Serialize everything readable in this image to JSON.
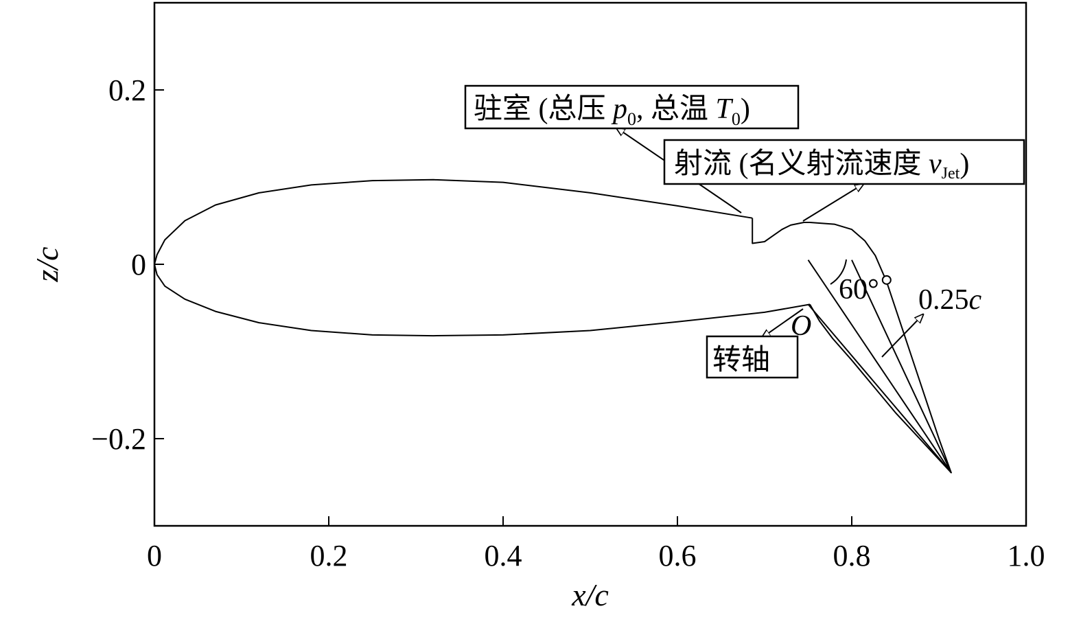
{
  "chart_data": {
    "type": "line",
    "xlabel": "x/c",
    "ylabel": "z/c",
    "xlim": [
      0,
      1.0
    ],
    "ylim": [
      -0.3,
      0.3
    ],
    "xticks": [
      {
        "value": 0,
        "label": "0"
      },
      {
        "value": 0.2,
        "label": "0.2"
      },
      {
        "value": 0.4,
        "label": "0.4"
      },
      {
        "value": 0.6,
        "label": "0.6"
      },
      {
        "value": 0.8,
        "label": "0.8"
      },
      {
        "value": 1.0,
        "label": "1.0"
      }
    ],
    "yticks": [
      {
        "value": 0.2,
        "label": "0.2"
      },
      {
        "value": 0,
        "label": "0"
      },
      {
        "value": -0.2,
        "label": "−0.2"
      }
    ],
    "grid": false,
    "legend": "none",
    "series": [
      {
        "role": "main-airfoil",
        "x": [
          0.686,
          0.6,
          0.5,
          0.4,
          0.32,
          0.25,
          0.18,
          0.12,
          0.07,
          0.035,
          0.012,
          0.003,
          0.0,
          0.003,
          0.012,
          0.035,
          0.07,
          0.12,
          0.18,
          0.25,
          0.32,
          0.4,
          0.5,
          0.6,
          0.7,
          0.752
        ],
        "y": [
          0.053,
          0.067,
          0.082,
          0.094,
          0.097,
          0.096,
          0.091,
          0.082,
          0.068,
          0.05,
          0.028,
          0.011,
          0.0,
          -0.012,
          -0.025,
          -0.04,
          -0.054,
          -0.067,
          -0.076,
          -0.081,
          -0.082,
          -0.081,
          -0.076,
          -0.066,
          -0.055,
          -0.046
        ]
      },
      {
        "role": "cove",
        "x": [
          0.686,
          0.686,
          0.7,
          0.71,
          0.72,
          0.73,
          0.745,
          0.752
        ],
        "y": [
          0.053,
          0.024,
          0.026,
          0.033,
          0.04,
          0.045,
          0.048,
          0.048
        ]
      },
      {
        "role": "flap",
        "x": [
          0.752,
          0.78,
          0.8,
          0.815,
          0.827,
          0.84,
          0.86,
          0.9,
          0.914,
          0.85,
          0.8,
          0.778,
          0.763,
          0.752
        ],
        "y": [
          0.048,
          0.046,
          0.04,
          0.027,
          0.01,
          -0.02,
          -0.08,
          -0.2,
          -0.239,
          -0.17,
          -0.11,
          -0.085,
          -0.065,
          -0.046
        ]
      },
      {
        "role": "deflection-reference",
        "x": [
          0.75,
          0.914,
          0.8
        ],
        "y": [
          0.005,
          -0.239,
          0.005
        ]
      },
      {
        "role": "flap-chord",
        "x": [
          0.75,
          0.914
        ],
        "y": [
          -0.046,
          -0.239
        ]
      }
    ],
    "markers": [
      {
        "role": "pivot-point",
        "x": 0.752,
        "y": -0.046,
        "label": "O"
      },
      {
        "role": "angle-vertex-circle",
        "x": 0.84,
        "y": -0.018
      }
    ],
    "annotations": [
      {
        "role": "plenum",
        "parts": [
          "驻室 (总压 ",
          "p",
          "0",
          ", 总温 ",
          "T",
          "0",
          ")"
        ]
      },
      {
        "role": "jet",
        "parts": [
          "射流 (名义射流速度 ",
          "v",
          "Jet",
          ")"
        ]
      },
      {
        "role": "pivot",
        "text": "转轴"
      },
      {
        "role": "angle",
        "text": "60°"
      },
      {
        "role": "flap-length",
        "parts": [
          "0.25",
          "c"
        ]
      }
    ]
  }
}
